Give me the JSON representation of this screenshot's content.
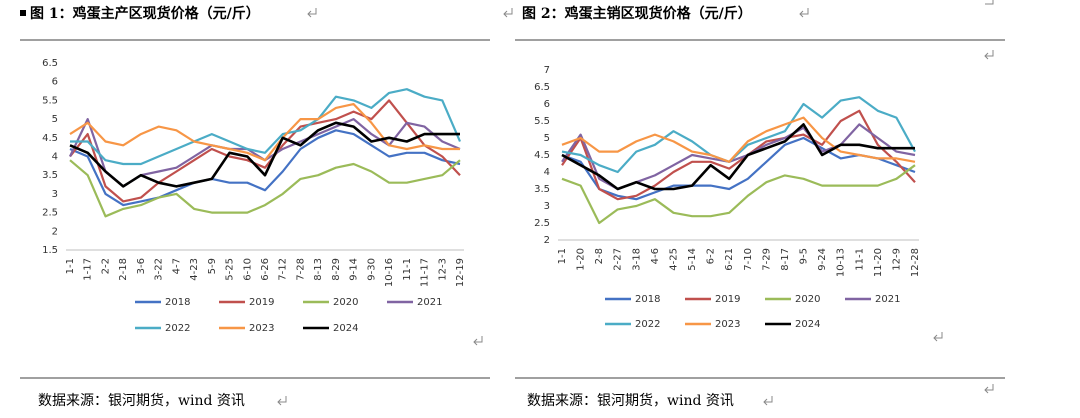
{
  "chart_data": [
    {
      "type": "line",
      "title": "图 1：鸡蛋主产区现货价格（元/斤）",
      "source": "数据来源：银河期货，wind 资讯",
      "categories": [
        "1-1",
        "1-17",
        "2-2",
        "2-18",
        "3-6",
        "3-22",
        "4-7",
        "4-23",
        "5-9",
        "5-25",
        "6-10",
        "6-26",
        "7-12",
        "7-28",
        "8-13",
        "8-29",
        "9-14",
        "9-30",
        "10-16",
        "11-1",
        "11-17",
        "12-3",
        "12-19"
      ],
      "ylim": [
        1.5,
        6.5
      ],
      "yticks": [
        1.5,
        2,
        2.5,
        3,
        3.5,
        4,
        4.5,
        5,
        5.5,
        6,
        6.5
      ],
      "series": [
        {
          "name": "2018",
          "color": "#4472c4",
          "values": [
            4.2,
            4.0,
            3.0,
            2.7,
            2.8,
            2.9,
            3.1,
            3.3,
            3.4,
            3.3,
            3.3,
            3.1,
            3.6,
            4.2,
            4.5,
            4.7,
            4.6,
            4.3,
            4.0,
            4.1,
            4.1,
            3.9,
            3.8
          ]
        },
        {
          "name": "2019",
          "color": "#c0504d",
          "values": [
            4.0,
            4.6,
            3.2,
            2.8,
            2.9,
            3.3,
            3.6,
            3.9,
            4.2,
            4.0,
            3.9,
            3.7,
            4.3,
            4.8,
            4.9,
            5.0,
            5.2,
            5.0,
            5.5,
            4.9,
            4.3,
            4.0,
            3.5
          ]
        },
        {
          "name": "2020",
          "color": "#9bbb59",
          "values": [
            3.9,
            3.5,
            2.4,
            2.6,
            2.7,
            2.9,
            3.0,
            2.6,
            2.5,
            2.5,
            2.5,
            2.7,
            3.0,
            3.4,
            3.5,
            3.7,
            3.8,
            3.6,
            3.3,
            3.3,
            3.4,
            3.5,
            3.9
          ]
        },
        {
          "name": "2021",
          "color": "#8064a2",
          "values": [
            4.0,
            5.0,
            3.6,
            3.2,
            3.5,
            3.6,
            3.7,
            4.0,
            4.3,
            4.2,
            4.2,
            3.9,
            4.2,
            4.4,
            4.6,
            4.8,
            5.0,
            4.6,
            4.3,
            4.9,
            4.8,
            4.4,
            4.2
          ]
        },
        {
          "name": "2022",
          "color": "#4bacc6",
          "values": [
            4.4,
            4.4,
            3.9,
            3.8,
            3.8,
            4.0,
            4.2,
            4.4,
            4.6,
            4.4,
            4.2,
            4.1,
            4.6,
            4.7,
            5.0,
            5.6,
            5.5,
            5.3,
            5.7,
            5.8,
            5.6,
            5.5,
            4.4
          ]
        },
        {
          "name": "2023",
          "color": "#f79646",
          "values": [
            4.6,
            4.9,
            4.4,
            4.3,
            4.6,
            4.8,
            4.7,
            4.4,
            4.3,
            4.2,
            4.1,
            3.9,
            4.5,
            5.0,
            5.0,
            5.3,
            5.4,
            4.9,
            4.3,
            4.2,
            4.3,
            4.2,
            4.2
          ]
        },
        {
          "name": "2024",
          "color": "#000000",
          "values": [
            4.3,
            4.1,
            3.6,
            3.2,
            3.5,
            3.3,
            3.2,
            3.3,
            3.4,
            4.1,
            4.0,
            3.5,
            4.5,
            4.3,
            4.7,
            4.9,
            4.8,
            4.4,
            4.5,
            4.4,
            4.6,
            4.6,
            4.6
          ]
        }
      ]
    },
    {
      "type": "line",
      "title": "图 2：鸡蛋主销区现货价格（元/斤）",
      "source": "数据来源：银河期货，wind 资讯",
      "categories": [
        "1-1",
        "1-20",
        "2-8",
        "2-27",
        "3-18",
        "4-6",
        "4-25",
        "5-14",
        "6-2",
        "6-21",
        "7-10",
        "7-29",
        "8-17",
        "9-5",
        "9-24",
        "10-13",
        "11-1",
        "11-20",
        "12-9",
        "12-28"
      ],
      "ylim": [
        2,
        7
      ],
      "yticks": [
        2,
        2.5,
        3,
        3.5,
        4,
        4.5,
        5,
        5.5,
        6,
        6.5,
        7
      ],
      "series": [
        {
          "name": "2018",
          "color": "#4472c4",
          "values": [
            4.5,
            4.3,
            3.5,
            3.3,
            3.2,
            3.4,
            3.6,
            3.6,
            3.6,
            3.5,
            3.8,
            4.3,
            4.8,
            5.0,
            4.7,
            4.4,
            4.5,
            4.4,
            4.2,
            4.0
          ]
        },
        {
          "name": "2019",
          "color": "#c0504d",
          "values": [
            4.2,
            5.0,
            3.5,
            3.2,
            3.3,
            3.6,
            4.0,
            4.3,
            4.3,
            4.1,
            4.5,
            4.9,
            5.0,
            5.1,
            4.8,
            5.5,
            5.8,
            4.8,
            4.3,
            3.7
          ]
        },
        {
          "name": "2020",
          "color": "#9bbb59",
          "values": [
            3.8,
            3.6,
            2.5,
            2.9,
            3.0,
            3.2,
            2.8,
            2.7,
            2.7,
            2.8,
            3.3,
            3.7,
            3.9,
            3.8,
            3.6,
            3.6,
            3.6,
            3.6,
            3.8,
            4.2
          ]
        },
        {
          "name": "2021",
          "color": "#8064a2",
          "values": [
            4.3,
            5.1,
            3.8,
            3.5,
            3.7,
            3.9,
            4.2,
            4.5,
            4.4,
            4.3,
            4.5,
            4.8,
            5.0,
            5.3,
            4.6,
            4.8,
            5.4,
            5.0,
            4.6,
            4.5
          ]
        },
        {
          "name": "2022",
          "color": "#4bacc6",
          "values": [
            4.6,
            4.5,
            4.2,
            4.0,
            4.6,
            4.8,
            5.2,
            4.9,
            4.5,
            4.3,
            4.8,
            5.0,
            5.2,
            6.0,
            5.6,
            6.1,
            6.2,
            5.8,
            5.6,
            4.6
          ]
        },
        {
          "name": "2023",
          "color": "#f79646",
          "values": [
            4.8,
            5.0,
            4.6,
            4.6,
            4.9,
            5.1,
            4.9,
            4.6,
            4.5,
            4.3,
            4.9,
            5.2,
            5.4,
            5.6,
            5.0,
            4.6,
            4.5,
            4.4,
            4.4,
            4.3
          ]
        },
        {
          "name": "2024",
          "color": "#000000",
          "values": [
            4.5,
            4.2,
            3.9,
            3.5,
            3.7,
            3.5,
            3.5,
            3.6,
            4.2,
            3.8,
            4.5,
            4.7,
            4.9,
            5.4,
            4.5,
            4.8,
            4.8,
            4.7,
            4.7,
            4.7
          ]
        }
      ]
    }
  ]
}
